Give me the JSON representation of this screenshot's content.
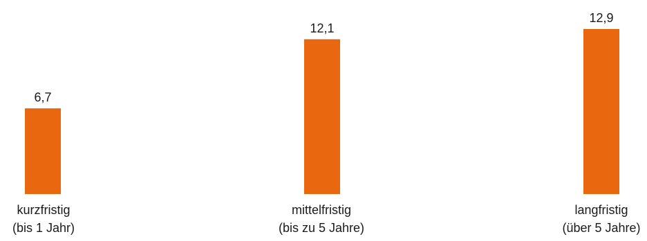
{
  "chart_data": {
    "type": "bar",
    "categories": [
      [
        "kurzfristig",
        "(bis 1 Jahr)"
      ],
      [
        "mittelfristig",
        "(bis zu 5 Jahre)"
      ],
      [
        "langfristig",
        "(über 5 Jahre)"
      ]
    ],
    "values": [
      6.7,
      12.1,
      12.9
    ],
    "value_labels": [
      "6,7",
      "12,1",
      "12,9"
    ],
    "title": "",
    "xlabel": "",
    "ylabel": "",
    "ylim": [
      0,
      12.9
    ],
    "grid": false,
    "legend": "none",
    "bar_color": "#E8670F"
  }
}
